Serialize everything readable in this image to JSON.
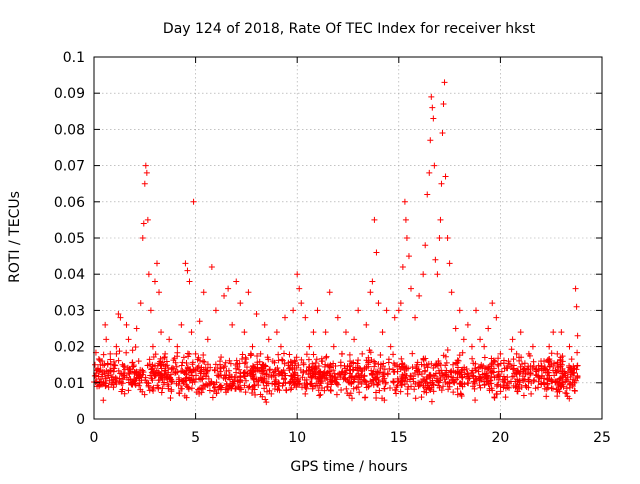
{
  "chart_data": {
    "type": "scatter",
    "title": "Day 124 of 2018, Rate Of TEC Index for receiver hkst",
    "xlabel": "GPS time / hours",
    "ylabel": "ROTI / TECUs",
    "xlim": [
      0,
      25
    ],
    "ylim": [
      0,
      0.1
    ],
    "xticks": [
      0,
      5,
      10,
      15,
      20,
      25
    ],
    "xtick_labels": [
      "0",
      "5",
      "10",
      "15",
      "20",
      "25"
    ],
    "yticks": [
      0,
      0.01,
      0.02,
      0.03,
      0.04,
      0.05,
      0.06,
      0.07,
      0.08,
      0.09,
      0.1
    ],
    "ytick_labels": [
      "0",
      "0.01",
      "0.02",
      "0.03",
      "0.04",
      "0.05",
      "0.06",
      "0.07",
      "0.08",
      "0.09",
      "0.1"
    ],
    "grid": true,
    "marker": "+",
    "color": "#ff0000",
    "series": [
      {
        "name": "ROTI",
        "points": [
          [
            0.05,
            0.015
          ],
          [
            0.1,
            0.012
          ],
          [
            0.15,
            0.009
          ],
          [
            0.2,
            0.014
          ],
          [
            0.3,
            0.011
          ],
          [
            0.4,
            0.016
          ],
          [
            0.5,
            0.013
          ],
          [
            0.55,
            0.026
          ],
          [
            0.6,
            0.022
          ],
          [
            0.7,
            0.012
          ],
          [
            0.8,
            0.018
          ],
          [
            0.9,
            0.01
          ],
          [
            1.0,
            0.014
          ],
          [
            1.1,
            0.02
          ],
          [
            1.2,
            0.029
          ],
          [
            1.3,
            0.028
          ],
          [
            1.4,
            0.015
          ],
          [
            1.5,
            0.012
          ],
          [
            1.6,
            0.026
          ],
          [
            1.7,
            0.022
          ],
          [
            1.8,
            0.011
          ],
          [
            1.9,
            0.019
          ],
          [
            2.0,
            0.013
          ],
          [
            2.1,
            0.025
          ],
          [
            2.2,
            0.016
          ],
          [
            2.3,
            0.032
          ],
          [
            2.4,
            0.05
          ],
          [
            2.45,
            0.054
          ],
          [
            2.5,
            0.065
          ],
          [
            2.55,
            0.07
          ],
          [
            2.6,
            0.068
          ],
          [
            2.65,
            0.055
          ],
          [
            2.7,
            0.04
          ],
          [
            2.8,
            0.03
          ],
          [
            2.9,
            0.02
          ],
          [
            3.0,
            0.038
          ],
          [
            3.1,
            0.043
          ],
          [
            3.2,
            0.035
          ],
          [
            3.3,
            0.024
          ],
          [
            3.5,
            0.018
          ],
          [
            3.7,
            0.022
          ],
          [
            3.9,
            0.014
          ],
          [
            4.1,
            0.02
          ],
          [
            4.3,
            0.026
          ],
          [
            4.5,
            0.043
          ],
          [
            4.6,
            0.041
          ],
          [
            4.7,
            0.038
          ],
          [
            4.8,
            0.024
          ],
          [
            4.9,
            0.06
          ],
          [
            5.0,
            0.018
          ],
          [
            5.2,
            0.027
          ],
          [
            5.4,
            0.035
          ],
          [
            5.6,
            0.022
          ],
          [
            5.8,
            0.042
          ],
          [
            6.0,
            0.03
          ],
          [
            6.2,
            0.016
          ],
          [
            6.4,
            0.034
          ],
          [
            6.6,
            0.036
          ],
          [
            6.8,
            0.026
          ],
          [
            7.0,
            0.038
          ],
          [
            7.2,
            0.032
          ],
          [
            7.4,
            0.024
          ],
          [
            7.6,
            0.035
          ],
          [
            7.8,
            0.02
          ],
          [
            8.0,
            0.029
          ],
          [
            8.2,
            0.018
          ],
          [
            8.4,
            0.026
          ],
          [
            8.6,
            0.022
          ],
          [
            8.8,
            0.016
          ],
          [
            9.0,
            0.024
          ],
          [
            9.2,
            0.02
          ],
          [
            9.4,
            0.028
          ],
          [
            9.6,
            0.014
          ],
          [
            9.8,
            0.03
          ],
          [
            10.0,
            0.04
          ],
          [
            10.1,
            0.036
          ],
          [
            10.2,
            0.032
          ],
          [
            10.4,
            0.028
          ],
          [
            10.6,
            0.02
          ],
          [
            10.8,
            0.024
          ],
          [
            11.0,
            0.03
          ],
          [
            11.2,
            0.016
          ],
          [
            11.4,
            0.024
          ],
          [
            11.6,
            0.035
          ],
          [
            11.8,
            0.02
          ],
          [
            12.0,
            0.028
          ],
          [
            12.2,
            0.018
          ],
          [
            12.4,
            0.024
          ],
          [
            12.6,
            0.016
          ],
          [
            12.8,
            0.022
          ],
          [
            13.0,
            0.03
          ],
          [
            13.2,
            0.018
          ],
          [
            13.4,
            0.026
          ],
          [
            13.6,
            0.035
          ],
          [
            13.7,
            0.038
          ],
          [
            13.8,
            0.055
          ],
          [
            13.9,
            0.046
          ],
          [
            14.0,
            0.032
          ],
          [
            14.2,
            0.024
          ],
          [
            14.4,
            0.03
          ],
          [
            14.6,
            0.02
          ],
          [
            14.8,
            0.028
          ],
          [
            15.0,
            0.03
          ],
          [
            15.1,
            0.032
          ],
          [
            15.2,
            0.042
          ],
          [
            15.3,
            0.06
          ],
          [
            15.35,
            0.055
          ],
          [
            15.4,
            0.05
          ],
          [
            15.5,
            0.045
          ],
          [
            15.6,
            0.036
          ],
          [
            15.8,
            0.028
          ],
          [
            16.0,
            0.034
          ],
          [
            16.2,
            0.04
          ],
          [
            16.3,
            0.048
          ],
          [
            16.4,
            0.062
          ],
          [
            16.5,
            0.068
          ],
          [
            16.55,
            0.077
          ],
          [
            16.6,
            0.089
          ],
          [
            16.65,
            0.086
          ],
          [
            16.7,
            0.083
          ],
          [
            16.75,
            0.07
          ],
          [
            16.8,
            0.044
          ],
          [
            16.9,
            0.04
          ],
          [
            17.0,
            0.05
          ],
          [
            17.05,
            0.055
          ],
          [
            17.1,
            0.065
          ],
          [
            17.15,
            0.079
          ],
          [
            17.2,
            0.087
          ],
          [
            17.25,
            0.093
          ],
          [
            17.3,
            0.067
          ],
          [
            17.4,
            0.05
          ],
          [
            17.5,
            0.043
          ],
          [
            17.6,
            0.035
          ],
          [
            17.8,
            0.025
          ],
          [
            18.0,
            0.03
          ],
          [
            18.2,
            0.022
          ],
          [
            18.4,
            0.026
          ],
          [
            18.6,
            0.02
          ],
          [
            18.8,
            0.03
          ],
          [
            19.0,
            0.022
          ],
          [
            19.2,
            0.02
          ],
          [
            19.4,
            0.025
          ],
          [
            19.6,
            0.032
          ],
          [
            19.8,
            0.028
          ],
          [
            20.0,
            0.018
          ],
          [
            20.2,
            0.014
          ],
          [
            20.4,
            0.016
          ],
          [
            20.6,
            0.022
          ],
          [
            20.8,
            0.018
          ],
          [
            21.0,
            0.024
          ],
          [
            21.2,
            0.014
          ],
          [
            21.4,
            0.018
          ],
          [
            21.6,
            0.02
          ],
          [
            21.8,
            0.012
          ],
          [
            22.0,
            0.016
          ],
          [
            22.2,
            0.014
          ],
          [
            22.4,
            0.02
          ],
          [
            22.6,
            0.024
          ],
          [
            22.8,
            0.018
          ],
          [
            23.0,
            0.024
          ],
          [
            23.2,
            0.012
          ],
          [
            23.4,
            0.02
          ],
          [
            23.6,
            0.014
          ],
          [
            23.7,
            0.036
          ],
          [
            23.75,
            0.031
          ],
          [
            23.8,
            0.023
          ]
        ]
      }
    ],
    "dense_band": {
      "description": "baseline cloud",
      "x_range": [
        0,
        23.8
      ],
      "y_range": [
        0.004,
        0.02
      ],
      "count": 1500
    }
  }
}
